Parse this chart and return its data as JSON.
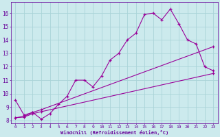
{
  "bg_color": "#cceaed",
  "grid_color": "#aad4d8",
  "line_color": "#990099",
  "marker": "+",
  "xlabel": "Windchill (Refroidissement éolien,°C)",
  "xlabel_color": "#660099",
  "tick_color": "#660099",
  "xlim": [
    -0.5,
    23.5
  ],
  "ylim": [
    7.8,
    16.8
  ],
  "yticks": [
    8,
    9,
    10,
    11,
    12,
    13,
    14,
    15,
    16
  ],
  "xticks": [
    0,
    1,
    2,
    3,
    4,
    5,
    6,
    7,
    8,
    9,
    10,
    11,
    12,
    13,
    14,
    15,
    16,
    17,
    18,
    19,
    20,
    21,
    22,
    23
  ],
  "line1_x": [
    0,
    1,
    2,
    3,
    4,
    5,
    6,
    7,
    8,
    9,
    10,
    11,
    12,
    13,
    14,
    15,
    16,
    17,
    18,
    19,
    20,
    21,
    22,
    23
  ],
  "line1_y": [
    9.5,
    8.4,
    8.6,
    8.1,
    8.5,
    9.2,
    9.8,
    11.0,
    11.0,
    10.5,
    11.3,
    12.5,
    13.0,
    14.0,
    14.5,
    15.9,
    16.0,
    15.5,
    16.3,
    15.2,
    14.0,
    13.7,
    12.0,
    11.7
  ],
  "line2_x": [
    0,
    1,
    2,
    3,
    23
  ],
  "line2_y": [
    8.2,
    8.3,
    8.6,
    8.8,
    13.5
  ],
  "line3_x": [
    0,
    1,
    2,
    3,
    23
  ],
  "line3_y": [
    8.2,
    8.25,
    8.5,
    8.65,
    11.5
  ]
}
